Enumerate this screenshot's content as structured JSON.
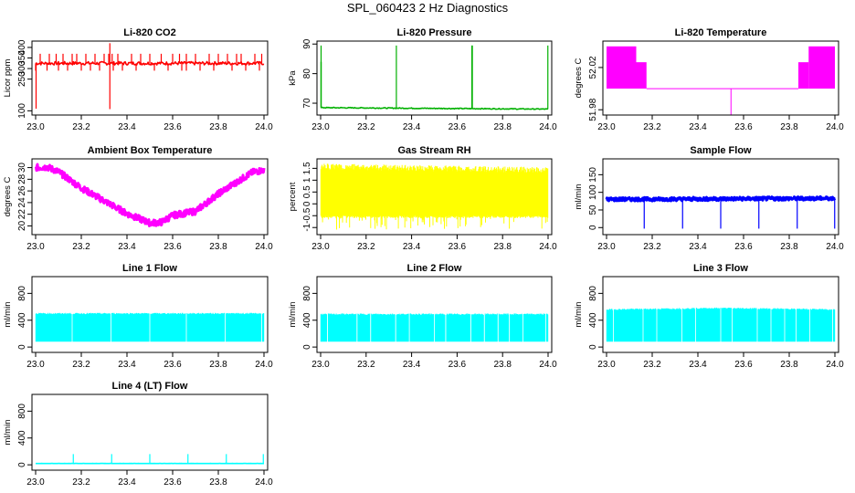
{
  "figure": {
    "title": "SPL_060423  2 Hz Diagnostics"
  },
  "chart_data": [
    {
      "type": "line",
      "title": "Li-820 CO2",
      "xlabel": "",
      "ylabel": "Licor ppm",
      "xlim": [
        23.0,
        24.0
      ],
      "ylim": [
        80,
        430
      ],
      "xticks": [
        "23.0",
        "23.2",
        "23.4",
        "23.6",
        "23.8",
        "24.0"
      ],
      "yticks": [
        100,
        250,
        300,
        350,
        400
      ],
      "color": "#ff0000",
      "style": "spiky-trace",
      "series": [
        {
          "x": [
            23.0,
            24.0
          ],
          "y": [
            325,
            325
          ]
        }
      ]
    },
    {
      "type": "line",
      "title": "Li-820 Pressure",
      "xlabel": "",
      "ylabel": "kPa",
      "xlim": [
        23.0,
        24.0
      ],
      "ylim": [
        66,
        91
      ],
      "xticks": [
        "23.0",
        "23.2",
        "23.4",
        "23.6",
        "23.8",
        "24.0"
      ],
      "yticks": [
        70,
        80,
        90
      ],
      "color": "#00b000",
      "style": "spiky-trace",
      "series": [
        {
          "x": [
            23.0,
            24.0
          ],
          "y": [
            68.5,
            68.0
          ]
        }
      ]
    },
    {
      "type": "area",
      "title": "Li-820 Temperature",
      "xlabel": "",
      "ylabel": "degrees C",
      "xlim": [
        23.0,
        24.0
      ],
      "ylim": [
        51.975,
        52.045
      ],
      "xticks": [
        "23.0",
        "23.2",
        "23.4",
        "23.6",
        "23.8",
        "24.0"
      ],
      "yticks": [
        51.98,
        52.02
      ],
      "color": "#ff00ff",
      "style": "step-band",
      "series": [
        {
          "x": [
            23.0,
            24.0
          ],
          "y": [
            52.0,
            52.0
          ]
        }
      ]
    },
    {
      "type": "line",
      "title": "Ambient Box Temperature",
      "xlabel": "",
      "ylabel": "degrees C",
      "xlim": [
        23.0,
        24.0
      ],
      "ylim": [
        18.5,
        31.5
      ],
      "xticks": [
        "23.0",
        "23.2",
        "23.4",
        "23.6",
        "23.8",
        "24.0"
      ],
      "yticks": [
        20,
        22,
        24,
        26,
        28,
        30
      ],
      "color": "#ff00ff",
      "style": "thick-noisy",
      "series": [
        {
          "x": [
            23.0,
            23.05,
            23.1,
            23.2,
            23.3,
            23.4,
            23.5,
            23.55,
            23.6,
            23.7,
            23.8,
            23.9,
            23.95,
            24.0
          ],
          "y": [
            30.0,
            30.1,
            29.3,
            26.5,
            24.3,
            22.1,
            20.5,
            20.6,
            21.8,
            22.5,
            25.5,
            28.0,
            29.2,
            29.6
          ]
        }
      ]
    },
    {
      "type": "area",
      "title": "Gas Stream RH",
      "xlabel": "",
      "ylabel": "percent",
      "xlim": [
        23.0,
        24.0
      ],
      "ylim": [
        -1.3,
        1.9
      ],
      "xticks": [
        "23.0",
        "23.2",
        "23.4",
        "23.6",
        "23.8",
        "24.0"
      ],
      "yticks": [
        -1.0,
        -0.5,
        0.0,
        0.5,
        1.0,
        1.5
      ],
      "color": "#ffff00",
      "style": "noise-band",
      "series": [
        {
          "x": [
            23.0,
            24.0
          ],
          "y": [
            1.7,
            1.55
          ],
          "y2": [
            -0.5,
            -0.5
          ]
        }
      ]
    },
    {
      "type": "line",
      "title": "Sample Flow",
      "xlabel": "",
      "ylabel": "ml/min",
      "xlim": [
        23.0,
        24.0
      ],
      "ylim": [
        -20,
        195
      ],
      "xticks": [
        "23.0",
        "23.2",
        "23.4",
        "23.6",
        "23.8",
        "24.0"
      ],
      "yticks": [
        0,
        50,
        100,
        150
      ],
      "color": "#0000ff",
      "style": "thick-noisy",
      "series": [
        {
          "x": [
            23.0,
            24.0
          ],
          "y": [
            80,
            83
          ]
        }
      ]
    },
    {
      "type": "area",
      "title": "Line 1 Flow",
      "xlabel": "",
      "ylabel": "ml/min",
      "xlim": [
        23.0,
        24.0
      ],
      "ylim": [
        -80,
        1050
      ],
      "xticks": [
        "23.0",
        "23.2",
        "23.4",
        "23.6",
        "23.8",
        "24.0"
      ],
      "yticks": [
        0,
        400,
        800
      ],
      "color": "#00ffff",
      "style": "flow-band",
      "series": [
        {
          "x": [
            23.0,
            24.0
          ],
          "y": [
            500,
            500
          ],
          "y2": [
            80,
            80
          ]
        }
      ]
    },
    {
      "type": "area",
      "title": "Line 2 Flow",
      "xlabel": "",
      "ylabel": "ml/min",
      "xlim": [
        23.0,
        24.0
      ],
      "ylim": [
        -80,
        1050
      ],
      "xticks": [
        "23.0",
        "23.2",
        "23.4",
        "23.6",
        "23.8",
        "24.0"
      ],
      "yticks": [
        0,
        400,
        800
      ],
      "color": "#00ffff",
      "style": "flow-band",
      "series": [
        {
          "x": [
            23.0,
            24.0
          ],
          "y": [
            490,
            490
          ],
          "y2": [
            80,
            80
          ]
        }
      ]
    },
    {
      "type": "area",
      "title": "Line 3 Flow",
      "xlabel": "",
      "ylabel": "ml/min",
      "xlim": [
        23.0,
        24.0
      ],
      "ylim": [
        -80,
        1050
      ],
      "xticks": [
        "23.0",
        "23.2",
        "23.4",
        "23.6",
        "23.8",
        "24.0"
      ],
      "yticks": [
        0,
        400,
        800
      ],
      "color": "#00ffff",
      "style": "flow-band",
      "series": [
        {
          "x": [
            23.0,
            23.5,
            24.0
          ],
          "y": [
            560,
            580,
            560
          ],
          "y2": [
            80,
            80,
            80
          ]
        }
      ]
    },
    {
      "type": "line",
      "title": "Line 4 (LT) Flow",
      "xlabel": "",
      "ylabel": "ml/min",
      "xlim": [
        23.0,
        24.0
      ],
      "ylim": [
        -80,
        1050
      ],
      "xticks": [
        "23.0",
        "23.2",
        "23.4",
        "23.6",
        "23.8",
        "24.0"
      ],
      "yticks": [
        0,
        400,
        800
      ],
      "color": "#00ffff",
      "style": "spiky-trace",
      "series": [
        {
          "x": [
            23.0,
            24.0
          ],
          "y": [
            20,
            20
          ]
        }
      ]
    }
  ]
}
